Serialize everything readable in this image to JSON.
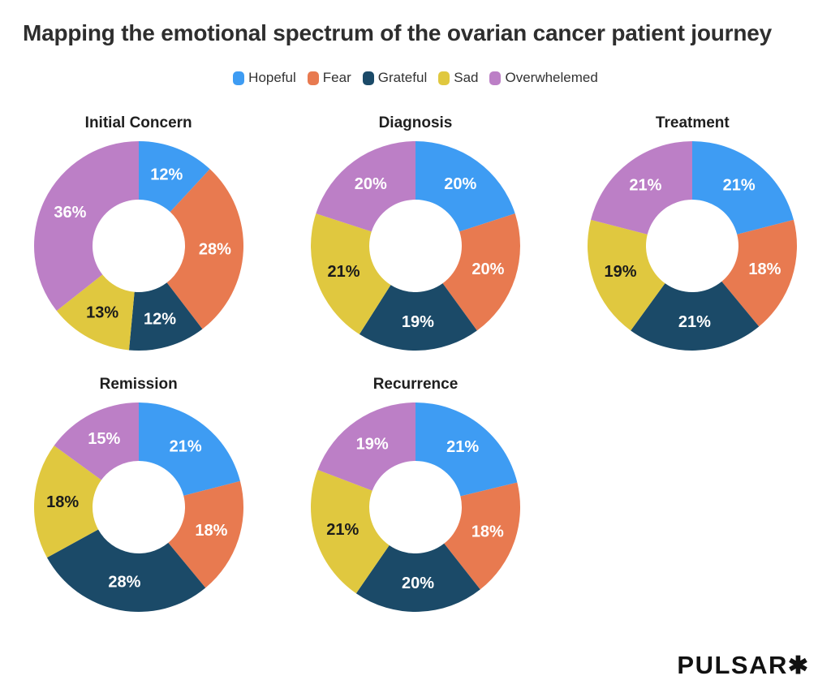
{
  "chart_data": {
    "type": "pie",
    "variant": "donut",
    "title": "Mapping the emotional spectrum of the ovarian cancer patient journey",
    "legend_position": "top",
    "start_angle": "12-o-clock-clockwise",
    "donut_inner_ratio": 0.44,
    "label_format": "{value}%",
    "label_color_default": "#FFFFFF",
    "label_color_on_sad_slice": "#1B1B1B",
    "series": [
      {
        "name": "Hopeful",
        "color": "#3E9CF3"
      },
      {
        "name": "Fear",
        "color": "#E87A50"
      },
      {
        "name": "Grateful",
        "color": "#1B4A68"
      },
      {
        "name": "Sad",
        "color": "#E0C83F"
      },
      {
        "name": "Overwhelemed",
        "color": "#BC7FC6"
      }
    ],
    "charts": [
      {
        "title": "Initial Concern",
        "values": [
          12,
          28,
          12,
          13,
          36
        ]
      },
      {
        "title": "Diagnosis",
        "values": [
          20,
          20,
          19,
          21,
          20
        ]
      },
      {
        "title": "Treatment",
        "values": [
          21,
          18,
          21,
          19,
          21
        ]
      },
      {
        "title": "Remission",
        "values": [
          21,
          18,
          28,
          18,
          15
        ]
      },
      {
        "title": "Recurrence",
        "values": [
          21,
          18,
          20,
          21,
          19
        ]
      }
    ]
  },
  "branding": {
    "logo_text": "PULSAR",
    "logo_mark": "✱"
  }
}
